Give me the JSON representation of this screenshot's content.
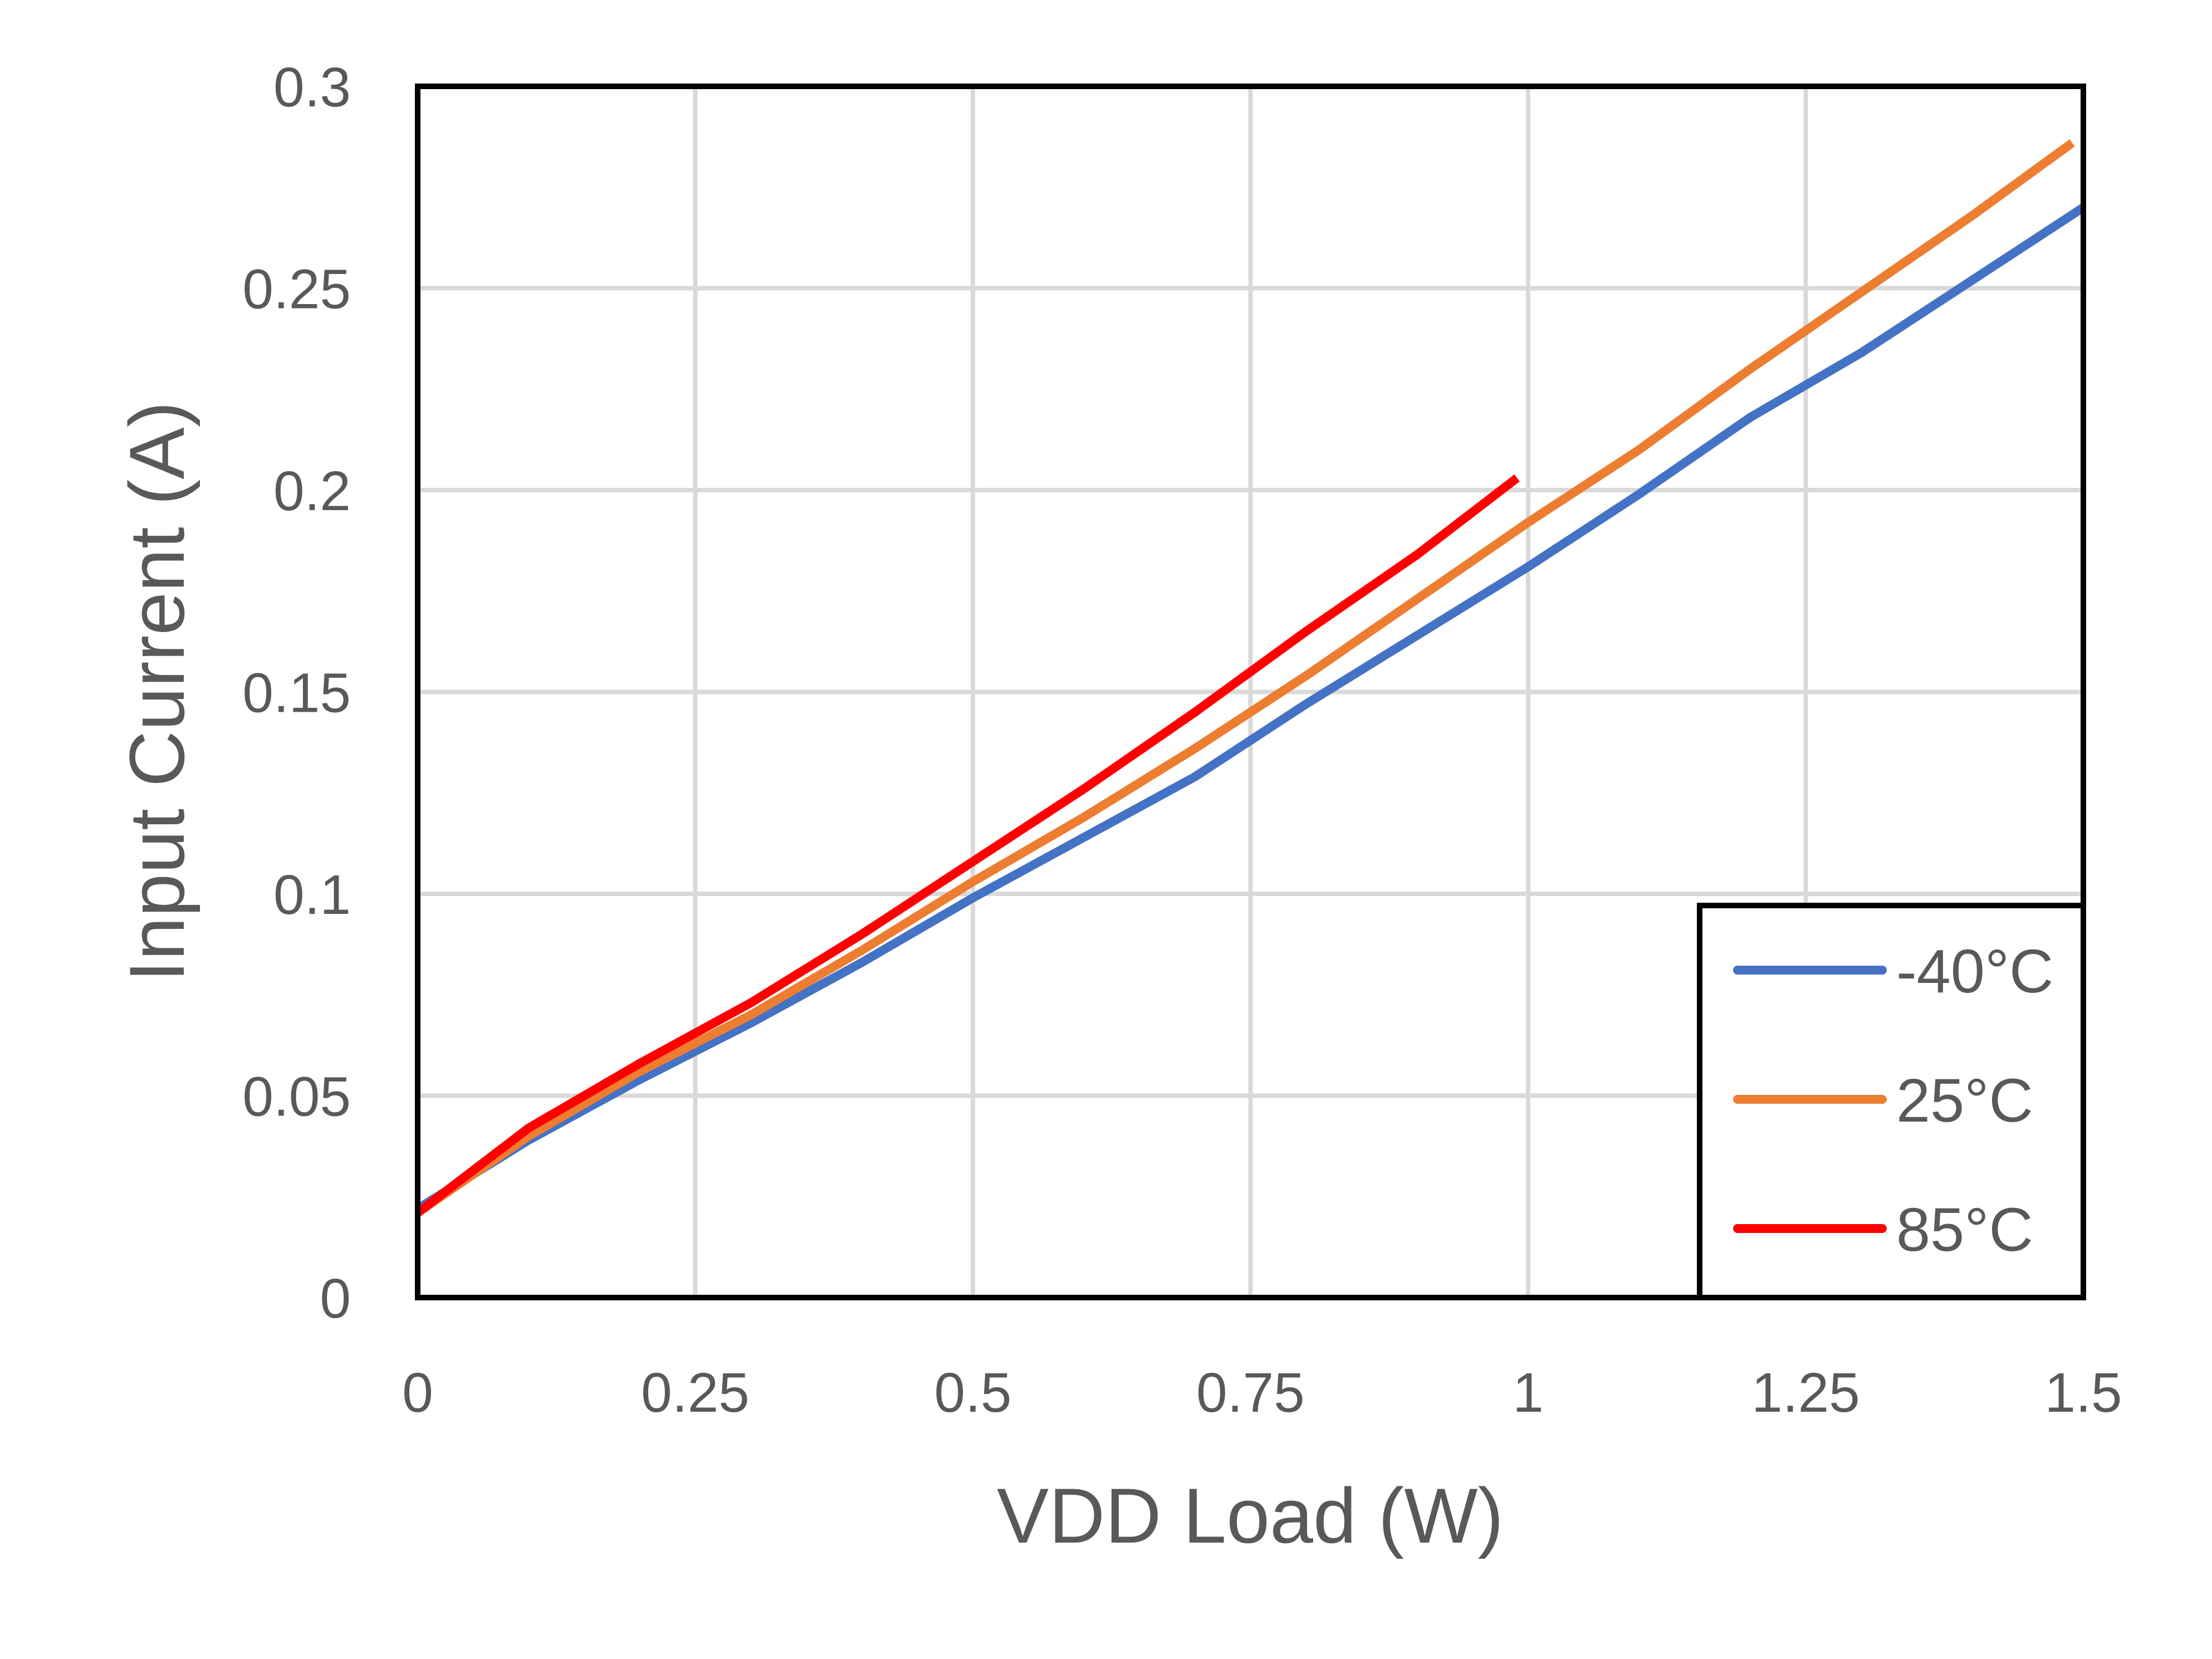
{
  "chart_data": {
    "type": "line",
    "title": "",
    "xlabel": "VDD Load (W)",
    "ylabel": "Input Current (A)",
    "xlim": [
      0,
      1.5
    ],
    "ylim": [
      0,
      0.3
    ],
    "xticks": [
      "0",
      "0.25",
      "0.5",
      "0.75",
      "1",
      "1.25",
      "1.5"
    ],
    "yticks": [
      "0",
      "0.05",
      "0.1",
      "0.15",
      "0.2",
      "0.25",
      "0.3"
    ],
    "grid": true,
    "legend_position": "bottom-right",
    "series": [
      {
        "name": "-40°C",
        "color": "#4472C4",
        "x": [
          0,
          0.1,
          0.2,
          0.3,
          0.4,
          0.5,
          0.6,
          0.7,
          0.8,
          0.9,
          1.0,
          1.1,
          1.2,
          1.3,
          1.4,
          1.5
        ],
        "y": [
          0.022,
          0.039,
          0.054,
          0.068,
          0.083,
          0.099,
          0.114,
          0.129,
          0.147,
          0.164,
          0.181,
          0.199,
          0.218,
          0.234,
          0.252,
          0.27
        ]
      },
      {
        "name": "25°C",
        "color": "#ED7D31",
        "x": [
          0,
          0.1,
          0.2,
          0.3,
          0.4,
          0.5,
          0.6,
          0.7,
          0.8,
          0.9,
          1.0,
          1.1,
          1.2,
          1.3,
          1.4,
          1.49
        ],
        "y": [
          0.021,
          0.04,
          0.056,
          0.07,
          0.086,
          0.103,
          0.119,
          0.136,
          0.154,
          0.173,
          0.192,
          0.21,
          0.23,
          0.249,
          0.268,
          0.286
        ]
      },
      {
        "name": "85°C",
        "color": "#FF0000",
        "x": [
          0,
          0.1,
          0.2,
          0.3,
          0.4,
          0.5,
          0.6,
          0.7,
          0.8,
          0.9,
          0.99
        ],
        "y": [
          0.021,
          0.042,
          0.058,
          0.073,
          0.09,
          0.108,
          0.126,
          0.145,
          0.165,
          0.184,
          0.203
        ]
      }
    ]
  }
}
